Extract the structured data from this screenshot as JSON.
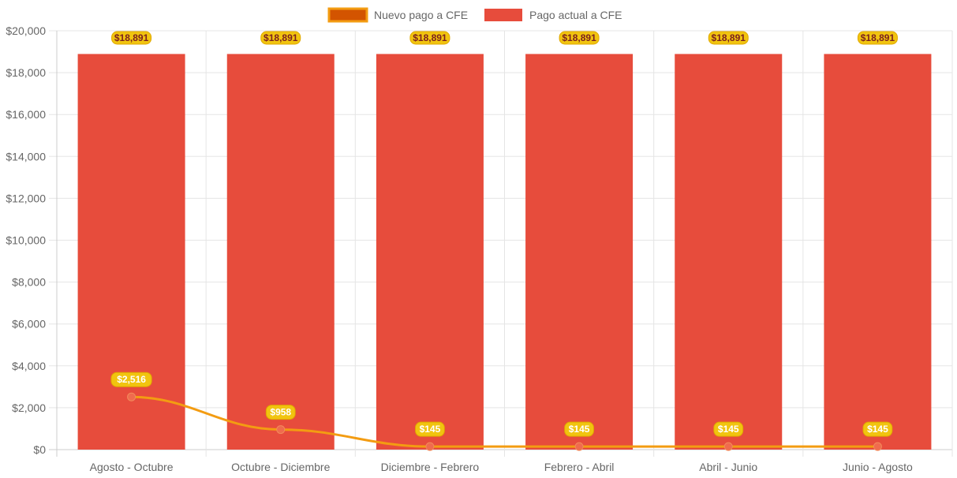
{
  "chart_data": {
    "type": "bar",
    "categories": [
      "Agosto - Octubre",
      "Octubre - Diciembre",
      "Diciembre - Febrero",
      "Febrero - Abril",
      "Abril - Junio",
      "Junio - Agosto"
    ],
    "series": [
      {
        "name": "Nuevo pago a CFE",
        "type": "line",
        "values": [
          2516,
          958,
          145,
          145,
          145,
          145
        ],
        "labels": [
          "$2,516",
          "$958",
          "$145",
          "$145",
          "$145",
          "$145"
        ],
        "color": "#f39c12",
        "point_color": "#f06b4e",
        "legend_fill": "#d35400"
      },
      {
        "name": "Pago actual a CFE",
        "type": "bar",
        "values": [
          18891,
          18891,
          18891,
          18891,
          18891,
          18891
        ],
        "labels": [
          "$18,891",
          "$18,891",
          "$18,891",
          "$18,891",
          "$18,891",
          "$18,891"
        ],
        "color": "#e74c3c"
      }
    ],
    "ylim": [
      0,
      20000
    ],
    "yticks": [
      0,
      2000,
      4000,
      6000,
      8000,
      10000,
      12000,
      14000,
      16000,
      18000,
      20000
    ],
    "ytick_labels": [
      "$0",
      "$2,000",
      "$4,000",
      "$6,000",
      "$8,000",
      "$10,000",
      "$12,000",
      "$14,000",
      "$16,000",
      "$18,000",
      "$20,000"
    ],
    "legend_position": "top",
    "grid": true,
    "data_label_fill": "#f1c40f",
    "bar_label_text_color": "#7a1f1f",
    "line_label_text_color": "#ffffff"
  }
}
